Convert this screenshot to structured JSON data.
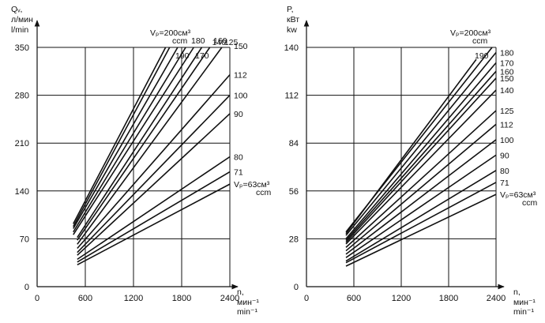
{
  "chart_data": [
    {
      "type": "line",
      "y_axis_label": [
        "Qᵥ,",
        "л/мин",
        "l/min"
      ],
      "x_axis_label": [
        "n,",
        "мин⁻¹",
        "min⁻¹"
      ],
      "x_ticks": [
        "0",
        "600",
        "1200",
        "1800",
        "2400"
      ],
      "y_ticks": [
        "0",
        "70",
        "140",
        "210",
        "280",
        "350"
      ],
      "xlim": [
        0,
        2400
      ],
      "ylim": [
        0,
        350
      ],
      "grid": true,
      "series": [
        {
          "name": "Vₚ=63см³ ccm",
          "x": [
            500,
            2400
          ],
          "y": [
            32,
            150
          ]
        },
        {
          "name": "71",
          "x": [
            500,
            2400
          ],
          "y": [
            36,
            168
          ]
        },
        {
          "name": "80",
          "x": [
            500,
            2400
          ],
          "y": [
            40,
            190
          ]
        },
        {
          "name": "90",
          "x": [
            500,
            2400
          ],
          "y": [
            46,
            253
          ]
        },
        {
          "name": "100",
          "x": [
            500,
            2400
          ],
          "y": [
            50,
            280
          ]
        },
        {
          "name": "112",
          "x": [
            500,
            2400
          ],
          "y": [
            56,
            310
          ]
        },
        {
          "name": "125",
          "x": [
            500,
            2300
          ],
          "y": [
            62,
            350
          ]
        },
        {
          "name": "140",
          "x": [
            500,
            2150
          ],
          "y": [
            68,
            350
          ]
        },
        {
          "name": "150",
          "x": [
            500,
            2050
          ],
          "y": [
            72,
            350
          ]
        },
        {
          "name": "160",
          "x": [
            450,
            1950
          ],
          "y": [
            76,
            350
          ]
        },
        {
          "name": "170",
          "x": [
            450,
            1850
          ],
          "y": [
            80,
            350
          ]
        },
        {
          "name": "180",
          "x": [
            450,
            1750
          ],
          "y": [
            85,
            350
          ]
        },
        {
          "name": "190",
          "x": [
            450,
            1650
          ],
          "y": [
            88,
            350
          ]
        },
        {
          "name": "Vₚ=200см³ ccm",
          "x": [
            450,
            1600
          ],
          "y": [
            92,
            350
          ]
        }
      ]
    },
    {
      "type": "line",
      "y_axis_label": [
        "P,",
        "кВт",
        "kw"
      ],
      "x_axis_label": [
        "n,",
        "мин⁻¹",
        "min⁻¹"
      ],
      "x_ticks": [
        "0",
        "600",
        "1200",
        "1800",
        "2400"
      ],
      "y_ticks": [
        "0",
        "28",
        "56",
        "84",
        "112",
        "140"
      ],
      "xlim": [
        0,
        2400
      ],
      "ylim": [
        0,
        140
      ],
      "grid": true,
      "series": [
        {
          "name": "Vₚ=63см³ ccm",
          "x": [
            500,
            2400
          ],
          "y": [
            12,
            54
          ]
        },
        {
          "name": "71",
          "x": [
            500,
            2400
          ],
          "y": [
            14,
            61
          ]
        },
        {
          "name": "80",
          "x": [
            500,
            2400
          ],
          "y": [
            15,
            68
          ]
        },
        {
          "name": "90",
          "x": [
            500,
            2400
          ],
          "y": [
            17,
            77
          ]
        },
        {
          "name": "100",
          "x": [
            500,
            2400
          ],
          "y": [
            19,
            86
          ]
        },
        {
          "name": "112",
          "x": [
            500,
            2400
          ],
          "y": [
            21,
            95
          ]
        },
        {
          "name": "125",
          "x": [
            500,
            2400
          ],
          "y": [
            23,
            103
          ]
        },
        {
          "name": "140",
          "x": [
            500,
            2400
          ],
          "y": [
            25,
            115
          ]
        },
        {
          "name": "150",
          "x": [
            500,
            2400
          ],
          "y": [
            26,
            122
          ]
        },
        {
          "name": "160",
          "x": [
            500,
            2400
          ],
          "y": [
            27,
            126
          ]
        },
        {
          "name": "170",
          "x": [
            500,
            2400
          ],
          "y": [
            28,
            131
          ]
        },
        {
          "name": "180",
          "x": [
            500,
            2400
          ],
          "y": [
            30,
            137
          ]
        },
        {
          "name": "190",
          "x": [
            500,
            2150
          ],
          "y": [
            31,
            133
          ]
        },
        {
          "name": "Vₚ=200см³ ccm",
          "x": [
            500,
            2350
          ],
          "y": [
            32,
            140
          ]
        }
      ]
    }
  ]
}
